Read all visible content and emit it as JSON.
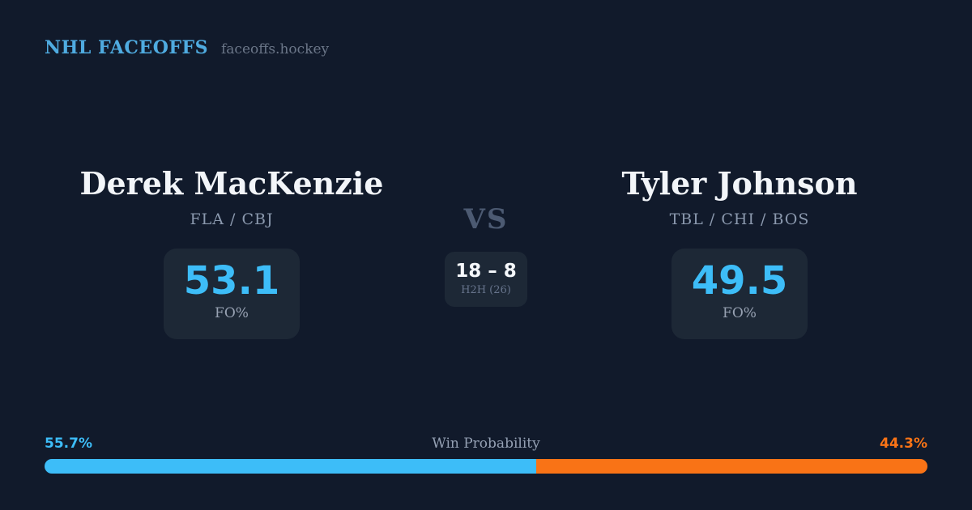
{
  "brand": {
    "title": "NHL FACEOFFS",
    "domain": "faceoffs.hockey"
  },
  "matchup": {
    "vs_label": "VS",
    "player_left": {
      "name": "Derek MacKenzie",
      "teams": "FLA / CBJ",
      "fo_value": "53.1",
      "fo_label": "FO%"
    },
    "player_right": {
      "name": "Tyler Johnson",
      "teams": "TBL / CHI / BOS",
      "fo_value": "49.5",
      "fo_label": "FO%"
    },
    "h2h": {
      "record": "18 – 8",
      "label": "H2H (26)"
    }
  },
  "win_probability": {
    "label": "Win Probability",
    "left": {
      "text": "55.7%",
      "value": 55.7,
      "color": "#3dbdf8"
    },
    "right": {
      "text": "44.3%",
      "value": 44.3,
      "color": "#f97316"
    }
  },
  "colors": {
    "background": "#111a2b",
    "card_background": "#1d2836",
    "accent_blue": "#3dbdf8",
    "accent_orange": "#f97316",
    "brand_blue": "#4fabe0",
    "text_primary": "#f2f5f9",
    "text_muted": "#8b99ae"
  }
}
